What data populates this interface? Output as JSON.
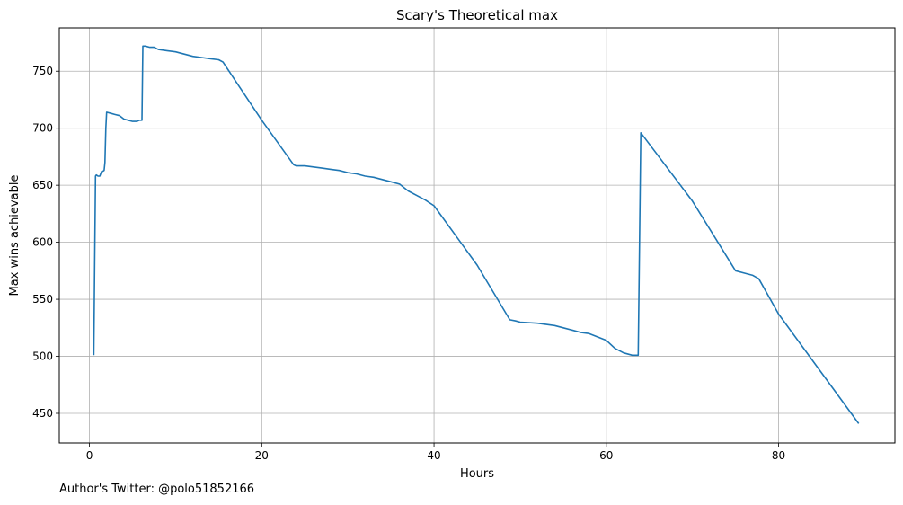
{
  "chart_data": {
    "type": "line",
    "title": "Scary's Theoretical max",
    "xlabel": "Hours",
    "ylabel": "Max wins achievable",
    "xlim": [
      -3.5,
      93.5
    ],
    "ylim": [
      424,
      788
    ],
    "xticks": [
      0,
      20,
      40,
      60,
      80
    ],
    "yticks": [
      450,
      500,
      550,
      600,
      650,
      700,
      750
    ],
    "grid": true,
    "legend": "none",
    "series": [
      {
        "color": "#1f77b4",
        "x": [
          0.5,
          0.7,
          0.8,
          1.0,
          1.2,
          1.4,
          1.5,
          1.7,
          1.8,
          1.9,
          2.0,
          2.5,
          3.0,
          3.5,
          4.0,
          4.5,
          5.0,
          5.5,
          5.8,
          6.0,
          6.1,
          6.2,
          6.5,
          7.0,
          7.5,
          8.0,
          9.0,
          10.0,
          11.0,
          12.0,
          13.0,
          14.0,
          15.0,
          15.5,
          17.0,
          20.0,
          23.7,
          24.0,
          25.0,
          26.0,
          27.0,
          28.0,
          29.0,
          30.0,
          31.0,
          32.0,
          33.0,
          34.0,
          35.0,
          36.0,
          37.0,
          38.0,
          39.0,
          40.0,
          45.0,
          48.8,
          49.5,
          50.0,
          52.0,
          54.0,
          55.0,
          56.0,
          57.0,
          58.0,
          59.0,
          60.0,
          61.0,
          62.0,
          63.0,
          63.7,
          64.0,
          70.0,
          75.0,
          76.0,
          77.0,
          77.7,
          80.0,
          89.3
        ],
        "y": [
          501,
          658,
          659,
          658,
          658,
          662,
          662,
          663,
          670,
          700,
          714,
          713,
          712,
          711,
          708,
          707,
          706,
          706,
          707,
          707,
          707,
          772,
          772,
          771,
          771,
          769,
          768,
          767,
          765,
          763,
          762,
          761,
          760,
          758,
          741,
          707,
          668,
          667,
          667,
          666,
          665,
          664,
          663,
          661,
          660,
          658,
          657,
          655,
          653,
          651,
          645,
          641,
          637,
          632,
          580,
          532,
          531,
          530,
          529,
          527,
          525,
          523,
          521,
          520,
          517,
          514,
          507,
          503,
          501,
          501,
          696,
          636,
          575,
          573,
          571,
          568,
          537,
          441
        ]
      }
    ]
  },
  "footer": {
    "text": "Author's Twitter: @polo51852166"
  }
}
